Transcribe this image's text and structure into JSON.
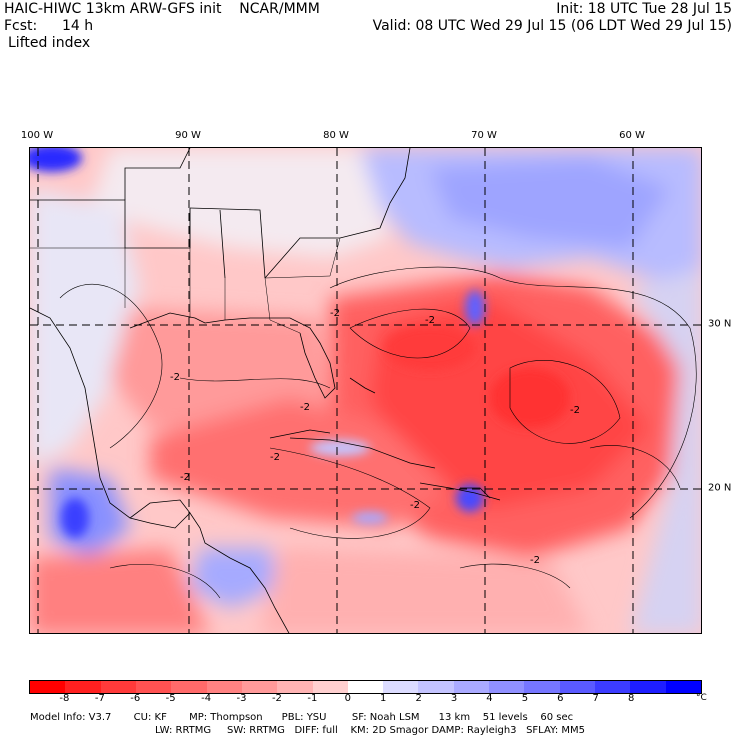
{
  "header": {
    "model_title": "HAIC-HIWC 13km ARW-GFS init    NCAR/MMM",
    "init_time": "Init: 18 UTC Tue 28 Jul 15",
    "forecast_label": "Fcst:",
    "forecast_hours": "14 h",
    "valid_time": "Valid: 08 UTC Wed 29 Jul 15 (06 LDT Wed 29 Jul 15)",
    "field_name": "Lifted index"
  },
  "map": {
    "longitude_labels": [
      "100 W",
      "90 W",
      "80 W",
      "70 W",
      "60 W"
    ],
    "latitude_labels": [
      "30 N",
      "20 N"
    ],
    "contour_labels": [
      "-2",
      "-2",
      "-2",
      "-2",
      "-2",
      "-2",
      "-2",
      "-2",
      "-2"
    ]
  },
  "colorbar": {
    "ticks": [
      "-8",
      "-7",
      "-6",
      "-5",
      "-4",
      "-3",
      "-2",
      "-1",
      "0",
      "1",
      "2",
      "3",
      "4",
      "5",
      "6",
      "7",
      "8"
    ],
    "unit": "°C",
    "colors": [
      "#ff0000",
      "#ff2020",
      "#ff3a3a",
      "#ff5252",
      "#ff6a6a",
      "#ff8282",
      "#ff9a9a",
      "#ffb4b4",
      "#ffd0d0",
      "#ffffff",
      "#dcdcff",
      "#c4c4ff",
      "#aaaaff",
      "#9090ff",
      "#7676ff",
      "#5a5aff",
      "#3c3cff",
      "#1e1eff",
      "#0000ff"
    ]
  },
  "model_info": {
    "line1": "Model Info: V3.7       CU: KF       MP: Thompson      PBL: YSU        SF: Noah LSM      13 km    51 levels    60 sec",
    "line2": "LW: RRTMG     SW: RRTMG   DIFF: full    KM: 2D Smagor DAMP: Rayleigh3   SFLAY: MM5"
  }
}
